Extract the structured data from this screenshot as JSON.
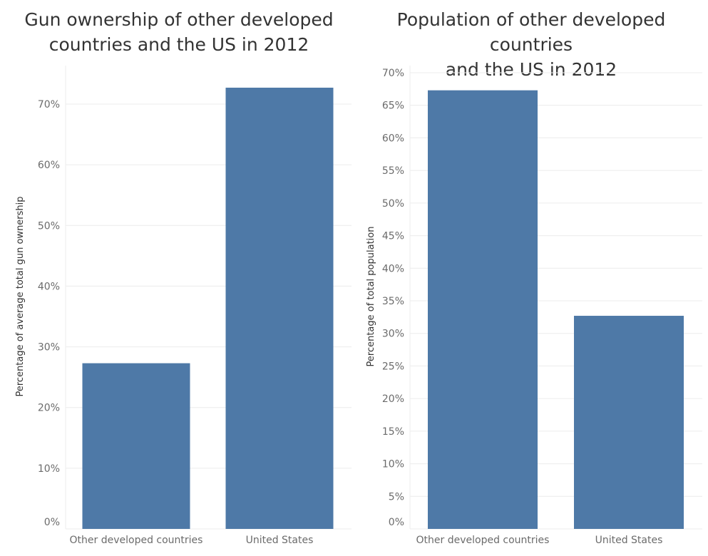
{
  "chart_data": [
    {
      "type": "bar",
      "title": "Gun ownership of other developed\ncountries and the US in 2012",
      "xlabel": "",
      "ylabel": "Percentage of average total gun ownership",
      "categories": [
        "Other developed countries",
        "United States"
      ],
      "values": [
        27.3,
        72.7
      ],
      "unit": "%",
      "ylim": [
        0,
        72.7
      ],
      "yticks": [
        0,
        10,
        20,
        30,
        40,
        50,
        60,
        70
      ],
      "ytick_labels": [
        "0%",
        "10%",
        "20%",
        "30%",
        "40%",
        "50%",
        "60%",
        "70%"
      ],
      "grid": true,
      "color": "#4e79a7"
    },
    {
      "type": "bar",
      "title": "Population of other developed countries\nand the US in 2012",
      "xlabel": "",
      "ylabel": "Percentage of total population",
      "categories": [
        "Other developed countries",
        "United States"
      ],
      "values": [
        67.3,
        32.7
      ],
      "unit": "%",
      "ylim": [
        0,
        70
      ],
      "yticks": [
        0,
        5,
        10,
        15,
        20,
        25,
        30,
        35,
        40,
        45,
        50,
        55,
        60,
        65,
        70
      ],
      "ytick_labels": [
        "0%",
        "5%",
        "10%",
        "15%",
        "20%",
        "25%",
        "30%",
        "35%",
        "40%",
        "45%",
        "50%",
        "55%",
        "60%",
        "65%",
        "70%"
      ],
      "grid": true,
      "color": "#4e79a7"
    }
  ],
  "colors": {
    "bar": "#4e79a7",
    "grid": "#ececec",
    "tick_text": "#6b6b6b",
    "title_text": "#333333"
  }
}
